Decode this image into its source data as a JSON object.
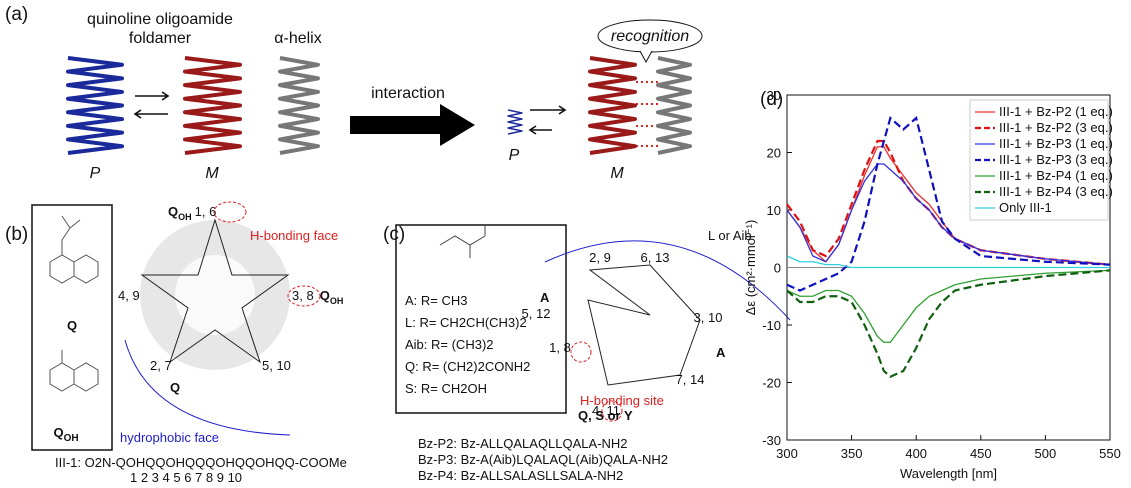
{
  "panel_a": {
    "label": "(a)",
    "foldamer_line1": "quinoline oligoamide",
    "foldamer_line2": "foldamer",
    "helix": "α-helix",
    "interaction": "interaction",
    "recognition": "recognition",
    "p1": "P",
    "m1": "M",
    "p2": "P",
    "m2": "M"
  },
  "panel_b": {
    "label": "(b)",
    "q_name": "Q",
    "qoh_name": {
      "main": "Q",
      "sub": "OH"
    },
    "pos_top": {
      "main": "Q",
      "sub": "OH",
      "num": "1, 6"
    },
    "pos_right": {
      "main": "Q",
      "sub": "OH",
      "num": "3, 8"
    },
    "pos_left": "4, 9",
    "pos_bl": "2, 7",
    "pos_br": "5, 10",
    "pos_q": "Q",
    "hbond_face": "H-bonding face",
    "hydrophobic_face": "hydrophobic face",
    "sequence": "III-1: O2N-QOHQQOHQQQOHQQOHQQ-COOMe",
    "numbering": "1    2 3    4 5 6    7 8    9 10"
  },
  "panel_c": {
    "label": "(c)",
    "residues": [
      "A: R= CH3",
      "L: R= CH2CH(CH3)2",
      "Aib: R= (CH3)2",
      "Q: R= (CH2)2CONH2",
      "S: R= CH2OH"
    ],
    "wheel": [
      "2, 9",
      "6, 13",
      "3, 10",
      "7, 14",
      "4, 11",
      "1, 8",
      "5, 12"
    ],
    "a_left": "A",
    "a_right": "A",
    "l_aib": "L or Aib",
    "hbond_site": "H-bonding site",
    "qsy": "Q, S or Y",
    "peptides": [
      "Bz-P2: Bz-ALLQALAQLLQALA-NH2",
      "Bz-P3: Bz-A(Aib)LQALAQL(Aib)QALA-NH2",
      "Bz-P4: Bz-ALLSALASLLSALA-NH2"
    ]
  },
  "chart_data": {
    "type": "line",
    "panel_label": "(d)",
    "x_label": "Wavelength [nm]",
    "y_label": "Δε (cm²·mmol⁻¹)",
    "x": [
      300,
      310,
      320,
      330,
      340,
      350,
      360,
      370,
      375,
      380,
      390,
      400,
      410,
      420,
      430,
      450,
      500,
      550
    ],
    "xlim": [
      300,
      550
    ],
    "xticks": [
      300,
      350,
      400,
      450,
      500,
      550
    ],
    "ylim": [
      -30,
      30
    ],
    "yticks": [
      -30,
      -20,
      -10,
      0,
      10,
      20,
      30
    ],
    "legend": "upper right",
    "series": [
      {
        "name": "III-1 + Bz-P2 (1 eq.)",
        "color": "#e83030",
        "dash": false,
        "values": [
          10,
          7,
          3,
          1,
          4,
          10,
          16,
          21,
          21,
          19,
          16,
          13,
          11,
          8,
          5,
          3,
          1.5,
          0.5
        ]
      },
      {
        "name": "III-1 + Bz-P2 (3 eq.)",
        "color": "#e01010",
        "dash": true,
        "values": [
          11,
          8,
          3,
          2,
          5,
          11,
          17,
          22,
          22,
          20,
          15,
          12,
          10,
          7,
          5,
          3,
          1.5,
          0.5
        ]
      },
      {
        "name": "III-1 + Bz-P3 (1 eq.)",
        "color": "#3030e0",
        "dash": false,
        "values": [
          10,
          7,
          2,
          1,
          4,
          10,
          15,
          18,
          18,
          17,
          15,
          12,
          10,
          7,
          5,
          3,
          1.5,
          0.5
        ]
      },
      {
        "name": "III-1 + Bz-P3 (3 eq.)",
        "color": "#1010c0",
        "dash": true,
        "values": [
          -3,
          -4,
          -3,
          -2,
          -1,
          1,
          8,
          18,
          22,
          26,
          24,
          26,
          17,
          8,
          5,
          2,
          1,
          0.5
        ]
      },
      {
        "name": "III-1 + Bz-P4 (1 eq.)",
        "color": "#30a030",
        "dash": false,
        "values": [
          -4,
          -5,
          -5,
          -4,
          -4,
          -5,
          -8,
          -12,
          -13,
          -13,
          -10,
          -7,
          -5,
          -4,
          -3,
          -2,
          -1,
          -0.5
        ]
      },
      {
        "name": "III-1 + Bz-P4 (3 eq.)",
        "color": "#106010",
        "dash": true,
        "values": [
          -4,
          -6,
          -6,
          -5,
          -5,
          -6,
          -10,
          -15,
          -18,
          -19,
          -18,
          -14,
          -9,
          -6,
          -4,
          -3,
          -1.5,
          -0.5
        ]
      },
      {
        "name": "Only III-1",
        "color": "#30d0e0",
        "dash": false,
        "values": [
          2,
          1,
          1,
          0.5,
          0.5,
          0,
          0,
          0,
          0,
          0,
          0,
          0,
          0,
          0,
          0,
          0,
          0,
          0
        ]
      }
    ]
  }
}
